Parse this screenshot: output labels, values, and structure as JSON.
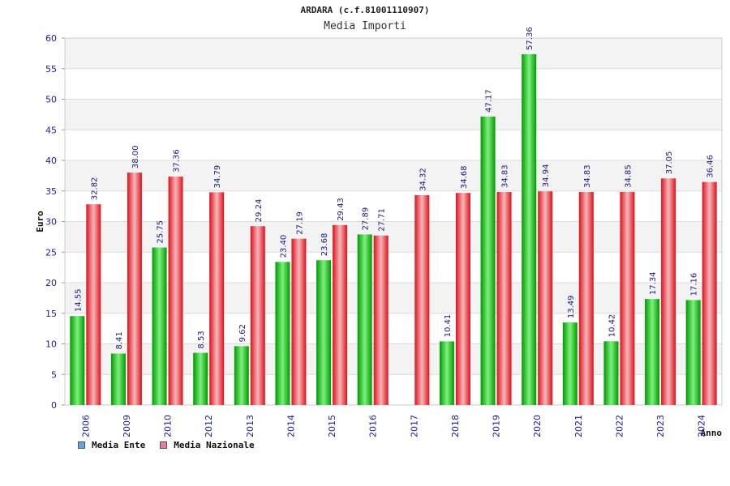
{
  "chart_data": {
    "type": "bar",
    "title": "ARDARA (c.f.81001110907)",
    "subtitle": "Media Importi",
    "xlabel": "Anno",
    "ylabel": "Euro",
    "ylim": [
      0,
      60
    ],
    "yticks": [
      0,
      5,
      10,
      15,
      20,
      25,
      30,
      35,
      40,
      45,
      50,
      55,
      60
    ],
    "grid": true,
    "legend_position": "bottom-left",
    "categories": [
      "2006",
      "2009",
      "2010",
      "2012",
      "2013",
      "2014",
      "2015",
      "2016",
      "2017",
      "2018",
      "2019",
      "2020",
      "2021",
      "2022",
      "2023",
      "2024"
    ],
    "series": [
      {
        "name": "Media Ente",
        "color": "#00b400",
        "legend_color": "#66a3e0",
        "values": [
          14.55,
          8.41,
          25.75,
          8.53,
          9.62,
          23.4,
          23.68,
          27.89,
          null,
          10.41,
          47.17,
          57.36,
          13.49,
          10.42,
          17.34,
          17.16
        ],
        "labels": [
          "14.55",
          "8.41",
          "25.75",
          "8.53",
          "9.62",
          "23.40",
          "23.68",
          "27.89",
          "",
          "10.41",
          "47.17",
          "57.36",
          "13.49",
          "10.42",
          "17.34",
          "17.16"
        ]
      },
      {
        "name": "Media Nazionale",
        "color": "#e8101a",
        "legend_color": "#e080a8",
        "values": [
          32.82,
          38.0,
          37.36,
          34.79,
          29.24,
          27.19,
          29.43,
          27.71,
          34.32,
          34.68,
          34.83,
          34.94,
          34.83,
          34.85,
          37.05,
          36.46
        ],
        "labels": [
          "32.82",
          "38.00",
          "37.36",
          "34.79",
          "29.24",
          "27.19",
          "29.43",
          "27.71",
          "34.32",
          "34.68",
          "34.83",
          "34.94",
          "34.83",
          "34.85",
          "37.05",
          "36.46"
        ]
      }
    ]
  }
}
